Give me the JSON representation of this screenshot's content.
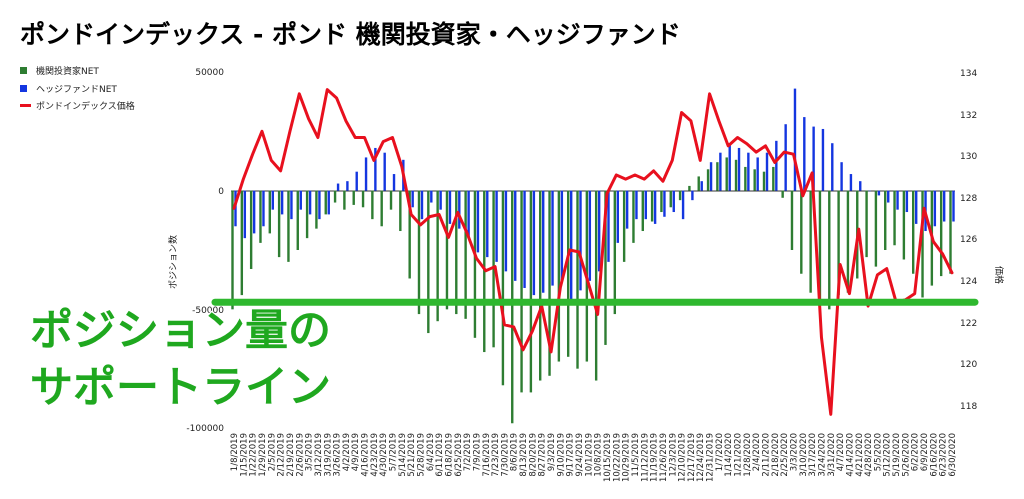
{
  "chart_data": {
    "type": "bar+line",
    "title": "ポンドインデックス - ポンド 機関投資家・ヘッジファンド",
    "legend_position": "top-left",
    "grid": false,
    "y_left": {
      "label": "ポジション数",
      "range": [
        -100000,
        50000
      ],
      "ticks": [
        50000,
        0,
        -50000,
        -100000
      ],
      "tick_labels": [
        "50000",
        "0",
        "-50000",
        "-100000"
      ]
    },
    "y_right": {
      "label": "価格",
      "range": [
        117,
        134
      ],
      "ticks": [
        134,
        132,
        130,
        128,
        126,
        124,
        122,
        120,
        118
      ],
      "tick_labels": [
        "134",
        "132",
        "130",
        "128",
        "126",
        "124",
        "122",
        "120",
        "118"
      ]
    },
    "x_tick_labels": [
      "1/8/2019",
      "1/15/2019",
      "1/22/2019",
      "1/29/2019",
      "2/5/2019",
      "2/12/2019",
      "2/19/2019",
      "2/26/2019",
      "3/5/2019",
      "3/12/2019",
      "3/19/2019",
      "3/26/2019",
      "4/2/2019",
      "4/9/2019",
      "4/16/2019",
      "4/23/2019",
      "4/30/2019",
      "5/7/2019",
      "5/14/2019",
      "5/21/2019",
      "5/28/2019",
      "6/4/2019",
      "6/11/2019",
      "6/18/2019",
      "6/25/2019",
      "7/2/2019",
      "7/9/2019",
      "7/16/2019",
      "7/23/2019",
      "7/30/2019",
      "8/6/2019",
      "8/13/2019",
      "8/20/2019",
      "8/27/2019",
      "9/3/2019",
      "9/10/2019",
      "9/17/2019",
      "9/24/2019",
      "10/1/2019",
      "10/8/2019",
      "10/15/2019",
      "10/22/2019",
      "10/29/2019",
      "11/5/2019",
      "11/12/2019",
      "11/19/2019",
      "11/26/2019",
      "12/3/2019",
      "12/10/2019",
      "12/17/2019",
      "12/24/2019",
      "12/31/2019",
      "1/7/2020",
      "1/14/2020",
      "1/21/2020",
      "1/28/2020",
      "2/4/2020",
      "2/11/2020",
      "2/18/2020",
      "2/25/2020",
      "3/3/2020",
      "3/10/2020",
      "3/17/2020",
      "3/24/2020",
      "3/31/2020",
      "4/7/2020",
      "4/14/2020",
      "4/21/2020",
      "4/28/2020",
      "5/5/2020",
      "5/12/2020",
      "5/19/2020",
      "5/26/2020",
      "6/2/2020",
      "6/9/2020",
      "6/16/2020",
      "6/23/2020",
      "6/30/2020"
    ],
    "series": [
      {
        "name": "機関投資家NET",
        "type": "bar",
        "color": "#2e7d32",
        "axis": "left",
        "values": [
          -50000,
          -44000,
          -33000,
          -22000,
          -18000,
          -28000,
          -30000,
          -25000,
          -20000,
          -16000,
          -10000,
          -5000,
          -8000,
          -6000,
          -7000,
          -12000,
          -15000,
          -8000,
          -17000,
          -37000,
          -52000,
          -60000,
          -55000,
          -50000,
          -52000,
          -54000,
          -62000,
          -68000,
          -66000,
          -82000,
          -98000,
          -85000,
          -85000,
          -80000,
          -78000,
          -72000,
          -70000,
          -75000,
          -72000,
          -80000,
          -65000,
          -52000,
          -30000,
          -22000,
          -17000,
          -13000,
          -9000,
          -7000,
          -4000,
          2000,
          6000,
          9000,
          12000,
          14000,
          13000,
          10000,
          9000,
          8000,
          10000,
          -3000,
          -25000,
          -35000,
          -43000,
          -48000,
          -50000,
          -44000,
          -43000,
          -37000,
          -28000,
          -32000,
          -25000,
          -23000,
          -29000,
          -35000,
          -45000,
          -40000,
          -36000,
          -35000
        ]
      },
      {
        "name": "ヘッジファンドNET",
        "type": "bar",
        "color": "#1436e0",
        "axis": "left",
        "values": [
          -15000,
          -20000,
          -18000,
          -15000,
          -8000,
          -10000,
          -12000,
          -8000,
          -10000,
          -12000,
          -10000,
          3000,
          4000,
          8000,
          14000,
          18000,
          16000,
          7000,
          13000,
          -7000,
          -12000,
          -5000,
          -8000,
          -14000,
          -16000,
          -20000,
          -26000,
          -28000,
          -30000,
          -34000,
          -38000,
          -41000,
          -44000,
          -43000,
          -40000,
          -38000,
          -47000,
          -42000,
          -38000,
          -34000,
          -30000,
          -22000,
          -16000,
          -12000,
          -12000,
          -14000,
          -11000,
          -9000,
          -12000,
          -4000,
          4000,
          12000,
          16000,
          19000,
          18000,
          16000,
          14000,
          16000,
          21000,
          28000,
          43000,
          31000,
          27000,
          26000,
          20000,
          12000,
          7000,
          4000,
          0,
          -2000,
          -5000,
          -8000,
          -9000,
          -14000,
          -17000,
          -15000,
          -13000,
          -13000
        ]
      },
      {
        "name": "ポンドインデックス価格",
        "type": "line",
        "color": "#e8101e",
        "axis": "right",
        "values": [
          127.5,
          128.9,
          130.1,
          131.2,
          129.8,
          129.3,
          131.2,
          133.0,
          131.8,
          130.9,
          133.2,
          132.8,
          131.7,
          130.9,
          130.9,
          129.8,
          130.7,
          130.9,
          129.5,
          127.2,
          126.7,
          127.1,
          127.2,
          126.1,
          127.3,
          126.3,
          125.1,
          124.5,
          124.7,
          121.9,
          121.8,
          120.7,
          121.6,
          122.8,
          120.6,
          123.7,
          125.5,
          125.4,
          123.9,
          122.4,
          128.2,
          129.1,
          128.9,
          129.1,
          128.9,
          129.3,
          128.8,
          129.8,
          132.1,
          131.7,
          129.8,
          133.0,
          131.7,
          130.5,
          130.9,
          130.6,
          130.2,
          130.5,
          129.7,
          130.2,
          130.1,
          128.1,
          129.2,
          121.3,
          117.6,
          124.8,
          123.4,
          126.5,
          122.8,
          124.3,
          124.6,
          123.0,
          123.1,
          123.4,
          127.5,
          125.9,
          125.3,
          124.4
        ]
      }
    ]
  },
  "overlay": {
    "line1": "ポジション量の",
    "line2": "サポートライン",
    "support_level": -47000,
    "color": "#2eb82e"
  }
}
